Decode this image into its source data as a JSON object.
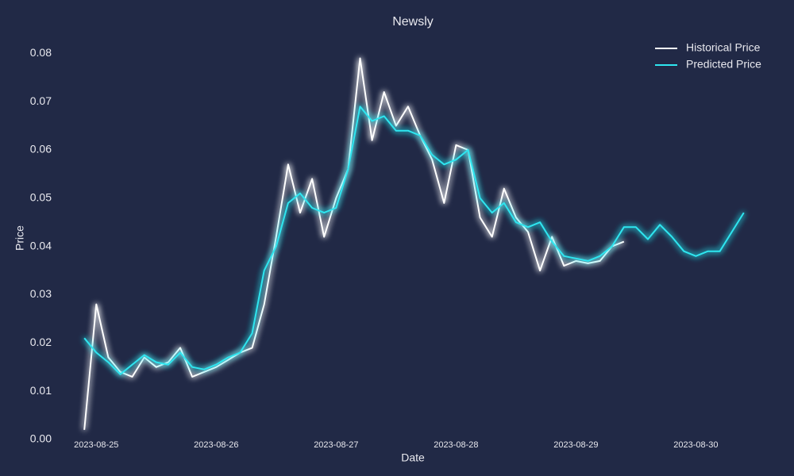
{
  "chart_data": {
    "type": "line",
    "title": "Newsly",
    "xlabel": "Date",
    "ylabel": "Price",
    "x": [
      -0.1,
      0,
      0.1,
      0.2,
      0.3,
      0.4,
      0.5,
      0.6,
      0.7,
      0.8,
      0.9,
      1,
      1.1,
      1.2,
      1.3,
      1.4,
      1.5,
      1.6,
      1.7,
      1.8,
      1.9,
      2,
      2.1,
      2.2,
      2.3,
      2.4,
      2.5,
      2.6,
      2.7,
      2.8,
      2.9,
      3,
      3.1,
      3.2,
      3.3,
      3.4,
      3.5,
      3.6,
      3.7,
      3.8,
      3.9,
      4,
      4.1,
      4.2,
      4.3,
      4.4,
      4.5,
      4.6,
      4.7,
      4.8,
      4.9,
      5,
      5.1,
      5.2,
      5.3,
      5.4
    ],
    "xlim": [
      -0.3,
      5.6
    ],
    "xticks": [
      {
        "value": 0,
        "label": "2023-08-25"
      },
      {
        "value": 1,
        "label": "2023-08-26"
      },
      {
        "value": 2,
        "label": "2023-08-27"
      },
      {
        "value": 3,
        "label": "2023-08-28"
      },
      {
        "value": 4,
        "label": "2023-08-29"
      },
      {
        "value": 5,
        "label": "2023-08-30"
      }
    ],
    "ylim": [
      -0.001,
      0.0845
    ],
    "yticks": [
      {
        "value": 0,
        "label": "0.00"
      },
      0.01,
      0.02,
      0.03,
      0.04,
      0.05,
      0.06,
      0.07,
      0.08
    ],
    "legend": "upper right",
    "glow": true,
    "series": [
      {
        "name": "Historical Price",
        "color": "#ffffff",
        "values": [
          0.002,
          0.028,
          0.017,
          0.014,
          0.013,
          0.017,
          0.015,
          0.016,
          0.019,
          0.013,
          0.014,
          0.015,
          0.0165,
          0.018,
          0.019,
          0.028,
          0.042,
          0.057,
          0.047,
          0.054,
          0.042,
          0.05,
          0.056,
          0.079,
          0.062,
          0.072,
          0.065,
          0.069,
          0.063,
          0.058,
          0.049,
          0.061,
          0.06,
          0.046,
          0.042,
          0.052,
          0.046,
          0.043,
          0.035,
          0.042,
          0.036,
          0.037,
          0.0365,
          0.037,
          0.04,
          0.041,
          null,
          null,
          null,
          null,
          null,
          null,
          null,
          null,
          null,
          null
        ]
      },
      {
        "name": "Predicted Price",
        "color": "#2ee6f0",
        "values": [
          0.021,
          0.018,
          0.016,
          0.0135,
          0.0155,
          0.0175,
          0.016,
          0.0155,
          0.018,
          0.015,
          0.0145,
          0.0155,
          0.017,
          0.018,
          0.022,
          0.035,
          0.04,
          0.049,
          0.051,
          0.048,
          0.047,
          0.048,
          0.056,
          0.069,
          0.066,
          0.067,
          0.064,
          0.064,
          0.063,
          0.059,
          0.057,
          0.058,
          0.06,
          0.05,
          0.047,
          0.049,
          0.045,
          0.044,
          0.045,
          0.041,
          0.038,
          0.0375,
          0.037,
          0.038,
          0.04,
          0.044,
          0.044,
          0.0415,
          0.0445,
          0.042,
          0.039,
          0.038,
          0.039,
          0.039,
          0.043,
          0.047
        ]
      }
    ]
  }
}
